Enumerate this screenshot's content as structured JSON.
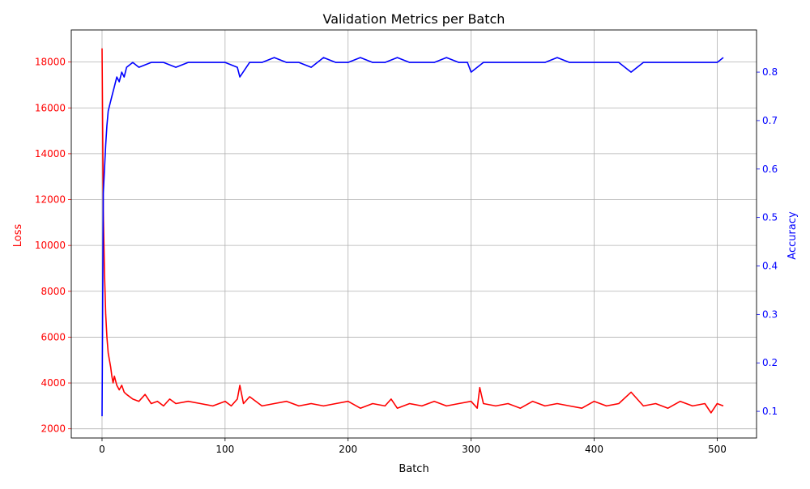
{
  "chart_data": {
    "type": "line",
    "title": "Validation Metrics per Batch",
    "xlabel": "Batch",
    "ylabel_left": "Loss",
    "ylabel_right": "Accuracy",
    "xlim": [
      -25,
      532
    ],
    "ylim_left": [
      1600,
      19400
    ],
    "ylim_right": [
      0.045,
      0.887
    ],
    "x_ticks": [
      0,
      100,
      200,
      300,
      400,
      500
    ],
    "y_ticks_left": [
      2000,
      4000,
      6000,
      8000,
      10000,
      12000,
      14000,
      16000,
      18000
    ],
    "y_ticks_right": [
      0.1,
      0.2,
      0.3,
      0.4,
      0.5,
      0.6,
      0.7,
      0.8
    ],
    "grid": true,
    "colors": {
      "loss": "#ff0000",
      "accuracy": "#0000ff",
      "grid": "#b0b0b0"
    },
    "series": [
      {
        "name": "Loss",
        "axis": "left",
        "color": "#ff0000",
        "x": [
          0,
          1,
          2,
          3,
          4,
          5,
          6,
          7,
          8,
          9,
          10,
          12,
          14,
          16,
          18,
          20,
          25,
          30,
          35,
          40,
          45,
          50,
          55,
          60,
          70,
          80,
          90,
          100,
          105,
          110,
          112,
          115,
          120,
          130,
          140,
          150,
          160,
          170,
          180,
          190,
          200,
          210,
          220,
          230,
          235,
          240,
          250,
          260,
          270,
          280,
          290,
          300,
          305,
          307,
          310,
          320,
          330,
          340,
          350,
          360,
          370,
          380,
          390,
          400,
          410,
          420,
          430,
          440,
          450,
          460,
          470,
          480,
          490,
          495,
          500,
          505
        ],
        "values": [
          18600,
          11500,
          8800,
          7000,
          6000,
          5300,
          5000,
          4700,
          4300,
          4000,
          4300,
          3900,
          3700,
          3900,
          3600,
          3500,
          3300,
          3200,
          3500,
          3100,
          3200,
          3000,
          3300,
          3100,
          3200,
          3100,
          3000,
          3200,
          3000,
          3300,
          3900,
          3100,
          3400,
          3000,
          3100,
          3200,
          3000,
          3100,
          3000,
          3100,
          3200,
          2900,
          3100,
          3000,
          3300,
          2900,
          3100,
          3000,
          3200,
          3000,
          3100,
          3200,
          2900,
          3800,
          3100,
          3000,
          3100,
          2900,
          3200,
          3000,
          3100,
          3000,
          2900,
          3200,
          3000,
          3100,
          3600,
          3000,
          3100,
          2900,
          3200,
          3000,
          3100,
          2700,
          3100,
          3000
        ]
      },
      {
        "name": "Accuracy",
        "axis": "right",
        "color": "#0000ff",
        "x": [
          0,
          1,
          2,
          3,
          4,
          5,
          6,
          8,
          10,
          12,
          14,
          16,
          18,
          20,
          25,
          30,
          40,
          50,
          60,
          70,
          80,
          90,
          100,
          110,
          112,
          120,
          130,
          140,
          150,
          160,
          170,
          180,
          190,
          200,
          210,
          220,
          230,
          240,
          250,
          260,
          270,
          280,
          290,
          297,
          300,
          310,
          320,
          330,
          340,
          350,
          360,
          370,
          380,
          390,
          400,
          410,
          420,
          430,
          440,
          450,
          460,
          470,
          480,
          490,
          500,
          505
        ],
        "values": [
          0.09,
          0.55,
          0.6,
          0.65,
          0.69,
          0.72,
          0.73,
          0.75,
          0.77,
          0.79,
          0.78,
          0.8,
          0.79,
          0.81,
          0.82,
          0.81,
          0.82,
          0.82,
          0.81,
          0.82,
          0.82,
          0.82,
          0.82,
          0.81,
          0.79,
          0.82,
          0.82,
          0.83,
          0.82,
          0.82,
          0.81,
          0.83,
          0.82,
          0.82,
          0.83,
          0.82,
          0.82,
          0.83,
          0.82,
          0.82,
          0.82,
          0.83,
          0.82,
          0.82,
          0.8,
          0.82,
          0.82,
          0.82,
          0.82,
          0.82,
          0.82,
          0.83,
          0.82,
          0.82,
          0.82,
          0.82,
          0.82,
          0.8,
          0.82,
          0.82,
          0.82,
          0.82,
          0.82,
          0.82,
          0.82,
          0.83
        ]
      }
    ]
  }
}
